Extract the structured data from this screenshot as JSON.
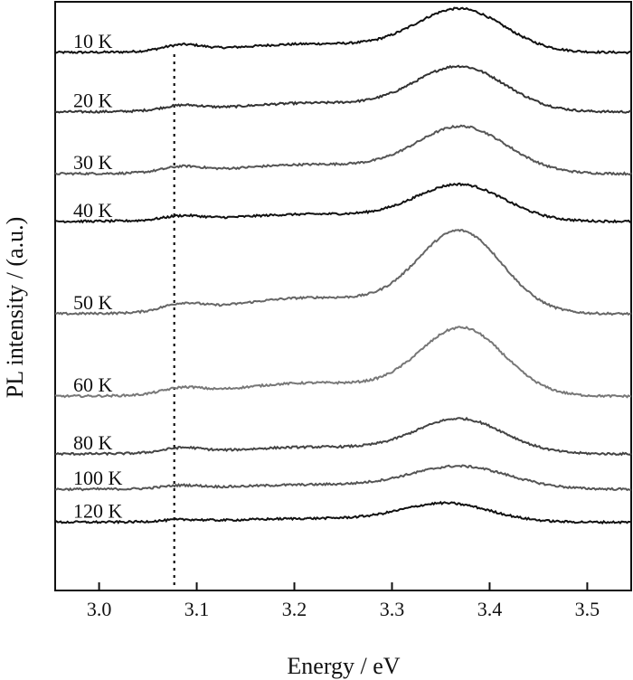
{
  "chart_data": {
    "type": "line",
    "xlabel": "Energy / eV",
    "ylabel": "PL intensity / (a.u.)",
    "xlim": [
      2.955,
      3.545
    ],
    "ylim": [
      0,
      100
    ],
    "xticks": [
      "3.0",
      "3.1",
      "3.2",
      "3.3",
      "3.4",
      "3.5"
    ],
    "xtick_values": [
      3.0,
      3.1,
      3.2,
      3.3,
      3.4,
      3.5
    ],
    "reference_line_x": 3.077,
    "grid": false,
    "series_colors": [
      "#111111",
      "#333333",
      "#555555",
      "#111111",
      "#666666",
      "#777777",
      "#444444",
      "#555555",
      "#111111"
    ],
    "series": [
      {
        "name": "10 K",
        "baseline": 91.4,
        "peak_x": 3.37,
        "peak": 7.2,
        "peak_width": 0.045,
        "shoulder": 1.0
      },
      {
        "name": "20 K",
        "baseline": 81.3,
        "peak_x": 3.37,
        "peak": 7.5,
        "peak_width": 0.046,
        "shoulder": 0.8
      },
      {
        "name": "30 K",
        "baseline": 70.8,
        "peak_x": 3.372,
        "peak": 7.8,
        "peak_width": 0.046,
        "shoulder": 0.9
      },
      {
        "name": "40 K",
        "baseline": 62.7,
        "peak_x": 3.37,
        "peak": 6.1,
        "peak_width": 0.045,
        "shoulder": 0.7
      },
      {
        "name": "50 K",
        "baseline": 47.0,
        "peak_x": 3.37,
        "peak": 13.7,
        "peak_width": 0.043,
        "shoulder": 1.2
      },
      {
        "name": "60 K",
        "baseline": 33.0,
        "peak_x": 3.372,
        "peak": 11.3,
        "peak_width": 0.043,
        "shoulder": 1.0
      },
      {
        "name": "80 K",
        "baseline": 23.2,
        "peak_x": 3.37,
        "peak": 5.8,
        "peak_width": 0.045,
        "shoulder": 0.8
      },
      {
        "name": "100 K",
        "baseline": 17.2,
        "peak_x": 3.37,
        "peak": 3.8,
        "peak_width": 0.05,
        "shoulder": 0.5
      },
      {
        "name": "120 K",
        "baseline": 11.6,
        "peak_x": 3.356,
        "peak": 3.1,
        "peak_width": 0.045,
        "shoulder": 0.3
      }
    ]
  }
}
